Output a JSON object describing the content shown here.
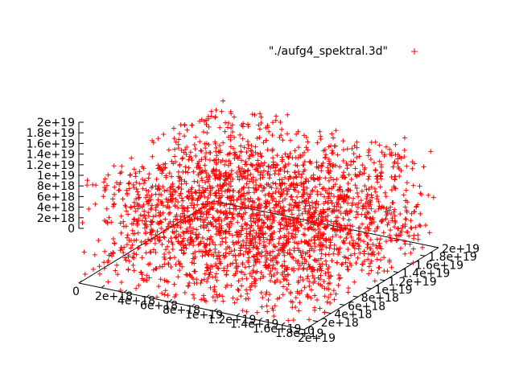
{
  "chart_data": {
    "type": "scatter",
    "title": "",
    "legend": {
      "label": "\"./aufg4_spektral.3d\"",
      "position": "top-right",
      "marker": "+",
      "color": "#ff0000"
    },
    "xlabel": "",
    "ylabel": "",
    "zlabel": "",
    "grid": false,
    "xlim": [
      0,
      2e+19
    ],
    "ylim": [
      0,
      2e+19
    ],
    "zlim": [
      0,
      2e+19
    ],
    "x_ticks": [
      "0",
      "2e+18",
      "4e+18",
      "6e+18",
      "8e+18",
      "1e+19",
      "1.2e+19",
      "1.4e+19",
      "1.6e+19",
      "1.8e+19",
      "2e+19"
    ],
    "y_ticks": [
      "0",
      "2e+18",
      "4e+18",
      "6e+18",
      "8e+18",
      "1e+19",
      "1.2e+19",
      "1.4e+19",
      "1.6e+19",
      "1.8e+19",
      "2e+19"
    ],
    "z_ticks": [
      "0",
      "2e+18",
      "4e+18",
      "6e+18",
      "8e+18",
      "1e+19",
      "1.2e+19",
      "1.4e+19",
      "1.6e+19",
      "1.8e+19",
      "2e+19"
    ],
    "series": [
      {
        "marker": "+",
        "color": "#ff0000",
        "distribution": "uniform random cloud filling the cube x, y, z in [0, 2e19]"
      }
    ]
  }
}
